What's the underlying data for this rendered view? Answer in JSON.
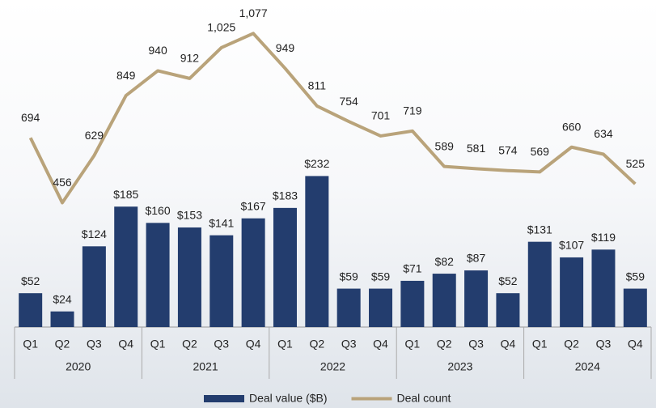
{
  "chart_data": {
    "type": "bar_line",
    "categories": [
      "Q1",
      "Q2",
      "Q3",
      "Q4",
      "Q1",
      "Q2",
      "Q3",
      "Q4",
      "Q1",
      "Q2",
      "Q3",
      "Q4",
      "Q1",
      "Q2",
      "Q3",
      "Q4",
      "Q1",
      "Q2",
      "Q3",
      "Q4"
    ],
    "groups": [
      "2020",
      "2021",
      "2022",
      "2023",
      "2024"
    ],
    "series": [
      {
        "name": "Deal value ($B)",
        "type": "bar",
        "color": "#233d6e",
        "values": [
          52,
          24,
          124,
          185,
          160,
          153,
          141,
          167,
          183,
          232,
          59,
          59,
          71,
          82,
          87,
          52,
          131,
          107,
          119,
          59
        ],
        "value_labels": [
          "$52",
          "$24",
          "$124",
          "$185",
          "$160",
          "$153",
          "$141",
          "$167",
          "$183",
          "$232",
          "$59",
          "$59",
          "$71",
          "$82",
          "$87",
          "$52",
          "$131",
          "$107",
          "$119",
          "$59"
        ]
      },
      {
        "name": "Deal count",
        "type": "line",
        "axis": "y2",
        "color": "#b9a37a",
        "values": [
          694,
          456,
          629,
          849,
          940,
          912,
          1025,
          1077,
          949,
          811,
          754,
          701,
          719,
          589,
          581,
          574,
          569,
          660,
          634,
          525
        ],
        "value_labels": [
          "694",
          "456",
          "629",
          "849",
          "940",
          "912",
          "1,025",
          "1,077",
          "949",
          "811",
          "754",
          "701",
          "719",
          "589",
          "581",
          "574",
          "569",
          "660",
          "634",
          "525"
        ]
      }
    ],
    "ylim": [
      0,
      490
    ],
    "y2lim": [
      0,
      1170
    ],
    "legend": "bottom"
  }
}
